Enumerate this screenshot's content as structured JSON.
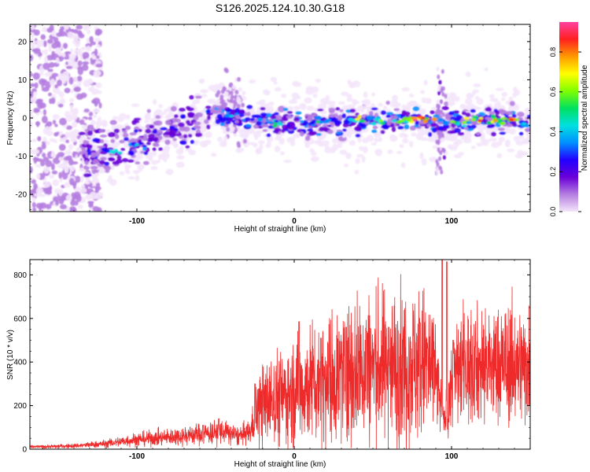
{
  "title": "S126.2025.124.10.30.G18",
  "chart_data": [
    {
      "type": "heatmap",
      "xlabel": "Height of straight line (km)",
      "ylabel": "Frequency (Hz)",
      "xlim": [
        -168,
        150
      ],
      "ylim": [
        -24.5,
        24.5
      ],
      "xticks": [
        -100,
        0,
        100
      ],
      "yticks": [
        -20,
        -10,
        0,
        10,
        20
      ],
      "colorbar": {
        "label": "Normalized spectral amplitude",
        "range": [
          0,
          0.95
        ],
        "ticks": [
          0.0,
          0.2,
          0.4,
          0.6,
          0.8
        ],
        "colors": [
          "#f4e6fb",
          "#b57ee0",
          "#6a00d8",
          "#2200ff",
          "#0090ff",
          "#00e0e0",
          "#00e060",
          "#80ff00",
          "#ffff00",
          "#ff9900",
          "#ff2020",
          "#ff40a0"
        ]
      },
      "ridge": [
        {
          "x": -130,
          "y": -9
        },
        {
          "x": -115,
          "y": -8.5
        },
        {
          "x": -100,
          "y": -6.5
        },
        {
          "x": -85,
          "y": -4
        },
        {
          "x": -70,
          "y": -3
        },
        {
          "x": -60,
          "y": -1
        },
        {
          "x": -50,
          "y": 2
        },
        {
          "x": -40,
          "y": 0
        },
        {
          "x": -30,
          "y": 0
        },
        {
          "x": -15,
          "y": -1
        },
        {
          "x": 0,
          "y": -1.5
        },
        {
          "x": 20,
          "y": -1.2
        },
        {
          "x": 40,
          "y": -0.5
        },
        {
          "x": 60,
          "y": -0.8
        },
        {
          "x": 80,
          "y": -0.3
        },
        {
          "x": 90,
          "y": -2
        },
        {
          "x": 100,
          "y": -1
        },
        {
          "x": 120,
          "y": -0.7
        },
        {
          "x": 140,
          "y": -0.5
        },
        {
          "x": 150,
          "y": -2
        }
      ],
      "hotspots": [
        {
          "x": -115,
          "y": -9,
          "v": 0.45
        },
        {
          "x": -100,
          "y": -7,
          "v": 0.4
        },
        {
          "x": -75,
          "y": -3,
          "v": 0.3
        },
        {
          "x": -40,
          "y": 0.5,
          "v": 0.4
        },
        {
          "x": -12,
          "y": -1.5,
          "v": 0.5
        },
        {
          "x": 15,
          "y": -1,
          "v": 0.5
        },
        {
          "x": 40,
          "y": -0.3,
          "v": 0.65
        },
        {
          "x": 55,
          "y": -0.7,
          "v": 0.6
        },
        {
          "x": 68,
          "y": -0.8,
          "v": 0.6
        },
        {
          "x": 77,
          "y": -0.5,
          "v": 0.9
        },
        {
          "x": 82,
          "y": 0,
          "v": 0.8
        },
        {
          "x": 108,
          "y": -1.2,
          "v": 0.6
        },
        {
          "x": 118,
          "y": -0.7,
          "v": 0.8
        },
        {
          "x": 128,
          "y": -0.7,
          "v": 0.75
        },
        {
          "x": 138,
          "y": -0.5,
          "v": 0.85
        },
        {
          "x": 146,
          "y": -1.5,
          "v": 0.45
        }
      ]
    },
    {
      "type": "line",
      "xlabel": "Height of straight line (km)",
      "ylabel": "SNR (10 * v/v)",
      "xlim": [
        -168,
        150
      ],
      "ylim": [
        0,
        870
      ],
      "xticks": [
        -100,
        0,
        100
      ],
      "yticks": [
        0,
        200,
        400,
        600,
        800
      ],
      "color": "#ee2a2a",
      "envelope": [
        {
          "x": -168,
          "y": 10
        },
        {
          "x": -140,
          "y": 15
        },
        {
          "x": -120,
          "y": 25
        },
        {
          "x": -100,
          "y": 45
        },
        {
          "x": -80,
          "y": 55
        },
        {
          "x": -60,
          "y": 70
        },
        {
          "x": -45,
          "y": 80
        },
        {
          "x": -35,
          "y": 60
        },
        {
          "x": -28,
          "y": 80
        },
        {
          "x": -22,
          "y": 200
        },
        {
          "x": -10,
          "y": 240
        },
        {
          "x": 0,
          "y": 260
        },
        {
          "x": 10,
          "y": 300
        },
        {
          "x": 25,
          "y": 330
        },
        {
          "x": 40,
          "y": 370
        },
        {
          "x": 60,
          "y": 380
        },
        {
          "x": 75,
          "y": 390
        },
        {
          "x": 85,
          "y": 390
        },
        {
          "x": 90,
          "y": 330
        },
        {
          "x": 93,
          "y": 200
        },
        {
          "x": 95,
          "y": 120
        },
        {
          "x": 97,
          "y": 150
        },
        {
          "x": 100,
          "y": 300
        },
        {
          "x": 105,
          "y": 380
        },
        {
          "x": 120,
          "y": 380
        },
        {
          "x": 135,
          "y": 380
        },
        {
          "x": 150,
          "y": 385
        }
      ],
      "spikes": [
        {
          "x": -58,
          "y": 110
        },
        {
          "x": -48,
          "y": 140
        },
        {
          "x": -25,
          "y": 300
        },
        {
          "x": 3,
          "y": 585
        },
        {
          "x": 17,
          "y": 510
        },
        {
          "x": 33,
          "y": 560
        },
        {
          "x": 46,
          "y": 540
        },
        {
          "x": 60,
          "y": 560
        },
        {
          "x": 80,
          "y": 580
        },
        {
          "x": 94,
          "y": 870
        },
        {
          "x": 97,
          "y": 860
        },
        {
          "x": 101,
          "y": 500
        },
        {
          "x": 115,
          "y": 470
        }
      ]
    }
  ]
}
